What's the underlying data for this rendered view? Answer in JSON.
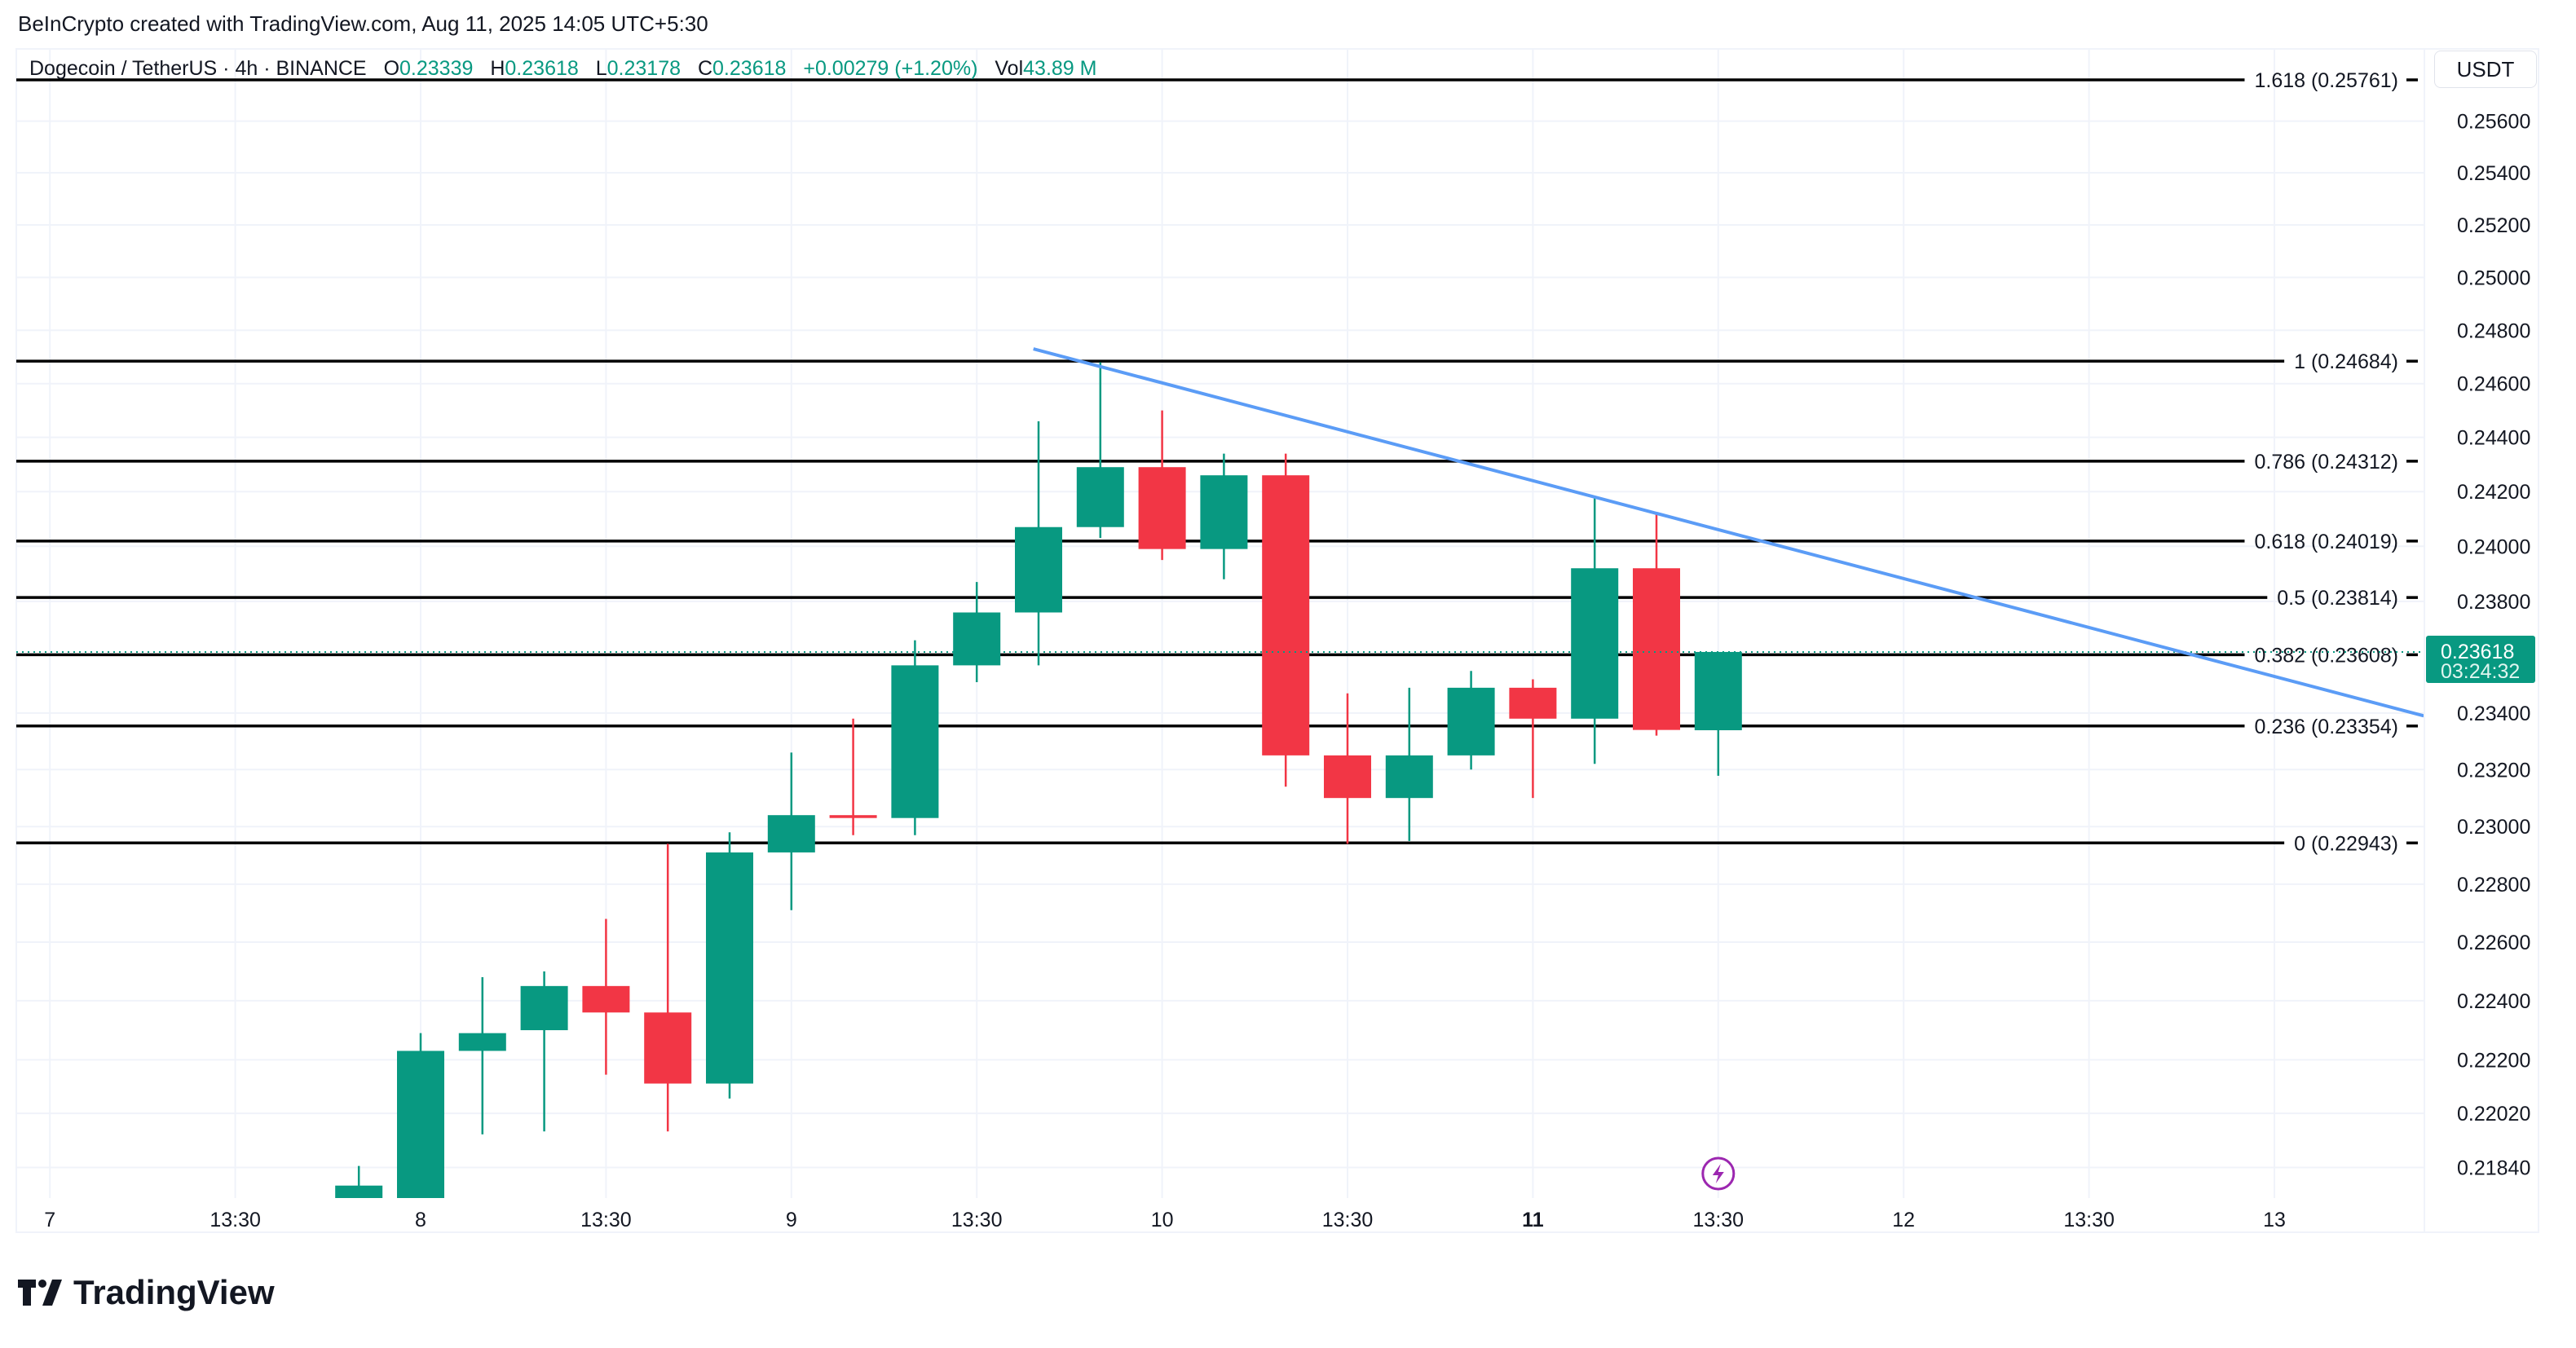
{
  "attribution": "BeInCrypto created with TradingView.com, Aug 11, 2025 14:05 UTC+5:30",
  "legend": {
    "symbol": "Dogecoin / TetherUS · 4h · BINANCE",
    "open_label": "O",
    "open": "0.23339",
    "high_label": "H",
    "high": "0.23618",
    "low_label": "L",
    "low": "0.23178",
    "close_label": "C",
    "close": "0.23618",
    "change": "+0.00279 (+1.20%)",
    "vol_label": "Vol",
    "vol": "43.89 M"
  },
  "currency_button": "USDT",
  "logo_text": "TradingView",
  "colors": {
    "up": "#089981",
    "down": "#f23645",
    "trendline": "#5b9cf6",
    "fib": "#000000",
    "grid": "#f0f3fa",
    "event_icon": "#9c27b0"
  },
  "chart_data": {
    "type": "candlestick",
    "interval": "4h",
    "y_scale": "log",
    "ylim": [
      0.2172,
      0.259
    ],
    "grid": true,
    "y_ticks": [
      "0.25600",
      "0.25400",
      "0.25200",
      "0.25000",
      "0.24800",
      "0.24600",
      "0.24400",
      "0.24200",
      "0.24000",
      "0.23800",
      "0.23400",
      "0.23200",
      "0.23000",
      "0.22800",
      "0.22600",
      "0.22400",
      "0.22200",
      "0.22020",
      "0.21840"
    ],
    "x_ticks": [
      {
        "label": "7",
        "time": "2025-08-07 01:30",
        "bold": false
      },
      {
        "label": "13:30",
        "time": "2025-08-07 13:30",
        "bold": false
      },
      {
        "label": "8",
        "time": "2025-08-08 01:30",
        "bold": false
      },
      {
        "label": "13:30",
        "time": "2025-08-08 13:30",
        "bold": false
      },
      {
        "label": "9",
        "time": "2025-08-09 01:30",
        "bold": false
      },
      {
        "label": "13:30",
        "time": "2025-08-09 13:30",
        "bold": false
      },
      {
        "label": "10",
        "time": "2025-08-10 01:30",
        "bold": false
      },
      {
        "label": "13:30",
        "time": "2025-08-10 13:30",
        "bold": false
      },
      {
        "label": "11",
        "time": "2025-08-11 01:30",
        "bold": true
      },
      {
        "label": "13:30",
        "time": "2025-08-11 13:30",
        "bold": false
      },
      {
        "label": "12",
        "time": "2025-08-12 01:30",
        "bold": false
      },
      {
        "label": "13:30",
        "time": "2025-08-12 13:30",
        "bold": false
      },
      {
        "label": "13",
        "time": "2025-08-13 01:30",
        "bold": false
      }
    ],
    "candles": [
      {
        "time": "2025-08-07 21:30",
        "o": 0.217,
        "h": 0.21845,
        "l": 0.2165,
        "c": 0.2178
      },
      {
        "time": "2025-08-08 01:30",
        "o": 0.2172,
        "h": 0.2229,
        "l": 0.2165,
        "c": 0.2223
      },
      {
        "time": "2025-08-08 05:30",
        "o": 0.2223,
        "h": 0.2248,
        "l": 0.2195,
        "c": 0.2229
      },
      {
        "time": "2025-08-08 09:30",
        "o": 0.223,
        "h": 0.225,
        "l": 0.2196,
        "c": 0.2245
      },
      {
        "time": "2025-08-08 13:30",
        "o": 0.2245,
        "h": 0.2268,
        "l": 0.2215,
        "c": 0.2236
      },
      {
        "time": "2025-08-08 17:30",
        "o": 0.2236,
        "h": 0.2294,
        "l": 0.2196,
        "c": 0.2212
      },
      {
        "time": "2025-08-08 21:30",
        "o": 0.2212,
        "h": 0.2298,
        "l": 0.2207,
        "c": 0.2291
      },
      {
        "time": "2025-08-09 01:30",
        "o": 0.2291,
        "h": 0.2326,
        "l": 0.2271,
        "c": 0.2304
      },
      {
        "time": "2025-08-09 05:30",
        "o": 0.2304,
        "h": 0.2338,
        "l": 0.2297,
        "c": 0.2303
      },
      {
        "time": "2025-08-09 09:30",
        "o": 0.2303,
        "h": 0.2366,
        "l": 0.2297,
        "c": 0.2357
      },
      {
        "time": "2025-08-09 13:30",
        "o": 0.2357,
        "h": 0.2387,
        "l": 0.2351,
        "c": 0.2376
      },
      {
        "time": "2025-08-09 17:30",
        "o": 0.2376,
        "h": 0.2446,
        "l": 0.2357,
        "c": 0.2407
      },
      {
        "time": "2025-08-09 21:30",
        "o": 0.2407,
        "h": 0.2468,
        "l": 0.2403,
        "c": 0.2429
      },
      {
        "time": "2025-08-10 01:30",
        "o": 0.2429,
        "h": 0.245,
        "l": 0.2395,
        "c": 0.2399
      },
      {
        "time": "2025-08-10 05:30",
        "o": 0.2399,
        "h": 0.2434,
        "l": 0.2388,
        "c": 0.2426
      },
      {
        "time": "2025-08-10 09:30",
        "o": 0.2426,
        "h": 0.2434,
        "l": 0.2314,
        "c": 0.2325
      },
      {
        "time": "2025-08-10 13:30",
        "o": 0.2325,
        "h": 0.2347,
        "l": 0.2294,
        "c": 0.231
      },
      {
        "time": "2025-08-10 17:30",
        "o": 0.231,
        "h": 0.2349,
        "l": 0.2295,
        "c": 0.2325
      },
      {
        "time": "2025-08-10 21:30",
        "o": 0.2325,
        "h": 0.2355,
        "l": 0.232,
        "c": 0.2349
      },
      {
        "time": "2025-08-11 01:30",
        "o": 0.2349,
        "h": 0.2352,
        "l": 0.231,
        "c": 0.2338
      },
      {
        "time": "2025-08-11 05:30",
        "o": 0.2338,
        "h": 0.2418,
        "l": 0.2322,
        "c": 0.2392
      },
      {
        "time": "2025-08-11 09:30",
        "o": 0.2392,
        "h": 0.2412,
        "l": 0.2332,
        "c": 0.2334
      },
      {
        "time": "2025-08-11 13:30",
        "o": 0.23339,
        "h": 0.23618,
        "l": 0.23178,
        "c": 0.23618
      }
    ],
    "fib_levels": [
      {
        "ratio": "1.618",
        "price": 0.25761,
        "label": "1.618 (0.25761)"
      },
      {
        "ratio": "1",
        "price": 0.24684,
        "label": "1 (0.24684)"
      },
      {
        "ratio": "0.786",
        "price": 0.24312,
        "label": "0.786 (0.24312)"
      },
      {
        "ratio": "0.618",
        "price": 0.24019,
        "label": "0.618 (0.24019)"
      },
      {
        "ratio": "0.5",
        "price": 0.23814,
        "label": "0.5 (0.23814)"
      },
      {
        "ratio": "0.382",
        "price": 0.23608,
        "label": "0.382 (0.23608)"
      },
      {
        "ratio": "0.236",
        "price": 0.23354,
        "label": "0.236 (0.23354)"
      },
      {
        "ratio": "0",
        "price": 0.22943,
        "label": "0 (0.22943)"
      }
    ],
    "trendline": [
      {
        "time": "2025-08-09 17:10",
        "price": 0.2473
      },
      {
        "time": "2025-08-13 11:10",
        "price": 0.2339
      }
    ],
    "last_price": {
      "value": "0.23618",
      "countdown": "03:24:32",
      "price": 0.23618
    },
    "event_marker": {
      "time": "2025-08-11 13:30",
      "icon": "lightning-icon"
    }
  }
}
